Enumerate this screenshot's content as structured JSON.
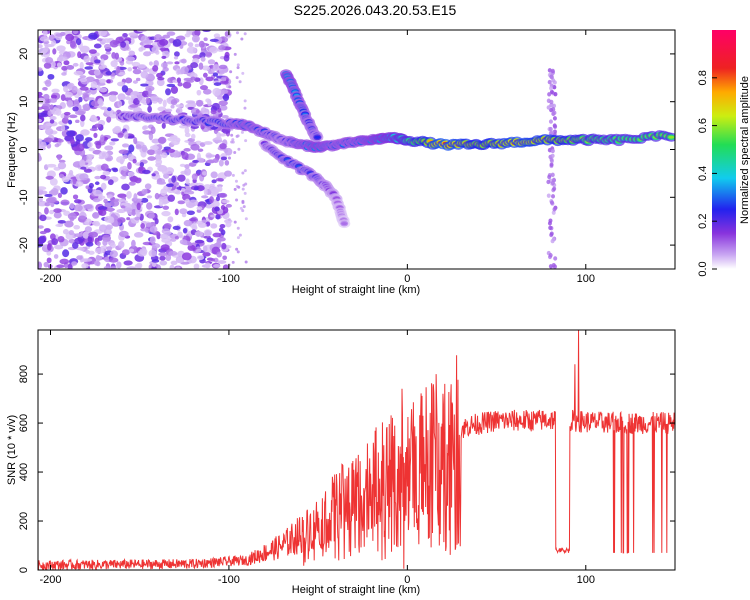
{
  "title": "S225.2026.043.20.53.E15",
  "chart_data": [
    {
      "type": "heatmap",
      "name": "spectrogram",
      "xlabel": "Height of straight line (km)",
      "ylabel": "Frequency (Hz)",
      "xlim": [
        -207,
        150
      ],
      "ylim": [
        -25,
        25
      ],
      "xticks": [
        -200,
        -100,
        0,
        100
      ],
      "yticks": [
        -20,
        -10,
        0,
        10,
        20
      ],
      "colorbar": {
        "label": "Normalized spectral amplitude",
        "range": [
          0,
          1
        ],
        "ticks": [
          0.0,
          0.2,
          0.4,
          0.6,
          0.8
        ]
      },
      "ridges": [
        {
          "x": [
            -160,
            -140,
            -120,
            -100,
            -90,
            -80,
            -70,
            -60,
            -50,
            -40,
            -30,
            -20,
            -10,
            0,
            20,
            40,
            60,
            80,
            100,
            120,
            150
          ],
          "y": [
            7,
            6.5,
            6,
            5.5,
            5,
            3.5,
            2,
            1,
            0.5,
            1,
            1.5,
            2,
            2.5,
            2,
            1,
            1,
            1.5,
            2,
            2,
            2,
            3
          ],
          "amplitude": [
            0.2,
            0.25,
            0.25,
            0.3,
            0.35,
            0.3,
            0.25,
            0.35,
            0.4,
            0.35,
            0.35,
            0.4,
            0.45,
            0.55,
            0.85,
            0.7,
            0.8,
            0.75,
            0.6,
            0.55,
            0.6
          ]
        },
        {
          "x": [
            -68,
            -62,
            -56,
            -50
          ],
          "y": [
            16,
            11,
            6,
            2
          ],
          "amplitude": [
            0.4,
            0.35,
            0.3,
            0.25
          ]
        },
        {
          "x": [
            -80,
            -65,
            -50,
            -40,
            -35
          ],
          "y": [
            1,
            -3,
            -6,
            -10,
            -16
          ],
          "amplitude": [
            0.2,
            0.3,
            0.25,
            0.15,
            0.1
          ]
        }
      ]
    },
    {
      "type": "line",
      "name": "snr",
      "xlabel": "Height of straight line (km)",
      "ylabel": "SNR (10 * v/v)",
      "xlim": [
        -207,
        150
      ],
      "ylim": [
        0,
        980
      ],
      "xticks": [
        -200,
        -100,
        0,
        100
      ],
      "yticks": [
        0,
        200,
        400,
        600,
        800
      ],
      "color": "#ee3333",
      "envelope": {
        "x": [
          -207,
          -120,
          -90,
          -70,
          -55,
          -45,
          -35,
          -25,
          -15,
          -5,
          5,
          15,
          25,
          35,
          50,
          70,
          85,
          100,
          120,
          150
        ],
        "y": [
          20,
          25,
          40,
          100,
          170,
          230,
          290,
          340,
          390,
          420,
          450,
          520,
          560,
          590,
          610,
          610,
          615,
          605,
          600,
          600
        ]
      },
      "dropouts": [
        {
          "x": [
            83,
            91
          ],
          "y": 70
        },
        {
          "x": [
            114,
            148
          ],
          "y": 70
        }
      ],
      "spikes": [
        {
          "x": -3,
          "y": 740
        },
        {
          "x": 96,
          "y": 980
        },
        {
          "x": 94,
          "y": 840
        }
      ]
    }
  ]
}
